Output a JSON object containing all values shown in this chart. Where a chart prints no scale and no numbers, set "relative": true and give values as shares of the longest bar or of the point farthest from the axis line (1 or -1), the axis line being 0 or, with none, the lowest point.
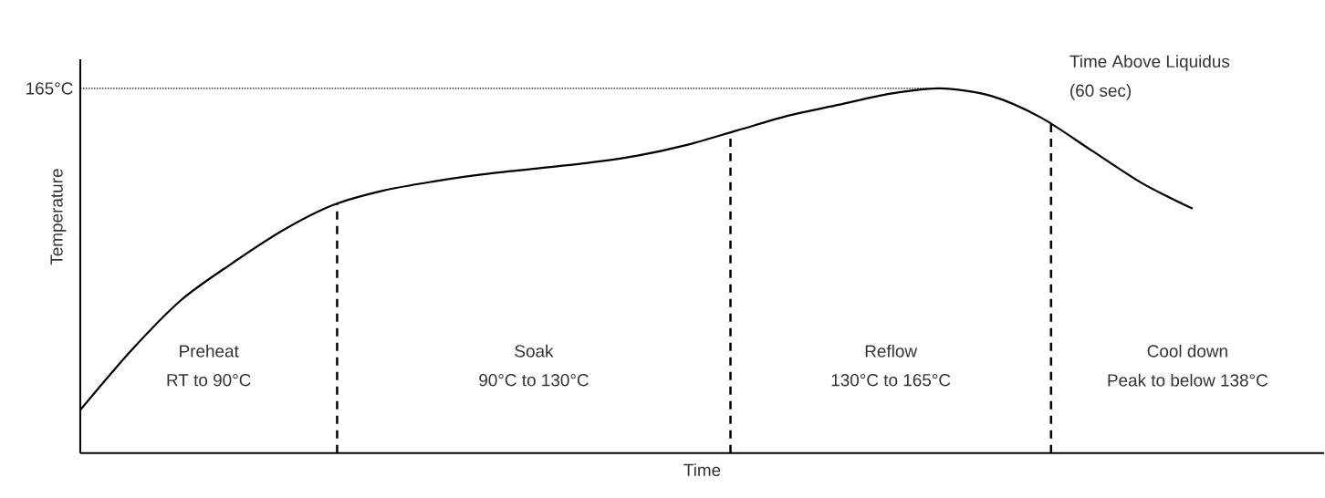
{
  "chart_data": {
    "type": "line",
    "relative": true,
    "xlabel": "Time",
    "ylabel": "Temperature",
    "categories": [
      null,
      null,
      null,
      null,
      null,
      null,
      null,
      null,
      null,
      null,
      null,
      null,
      null,
      null,
      null,
      null,
      null,
      null,
      null,
      null,
      null,
      null,
      null
    ],
    "series": [
      {
        "color": "#000000",
        "values": [
          0.118,
          0.28,
          0.42,
          0.52,
          0.61,
          0.68,
          0.72,
          0.745,
          0.765,
          0.78,
          0.795,
          0.815,
          0.845,
          0.885,
          0.925,
          0.955,
          0.985,
          1,
          0.98,
          0.92,
          0.83,
          0.74,
          0.67
        ]
      }
    ],
    "marker": "none",
    "line_style": "solid",
    "ref_lines": [
      {
        "axis": "y",
        "value": 1,
        "label": "165°C",
        "line_style": "dotted",
        "color": "#000000"
      }
    ],
    "annotations": [
      "Preheat",
      "RT to 90°C",
      "Soak",
      "90°C to 130°C",
      "Reflow",
      "130°C to 165°C",
      "Cool down",
      "Peak to below 138°C",
      "Time Above Liquidus",
      "(60 sec)"
    ]
  }
}
